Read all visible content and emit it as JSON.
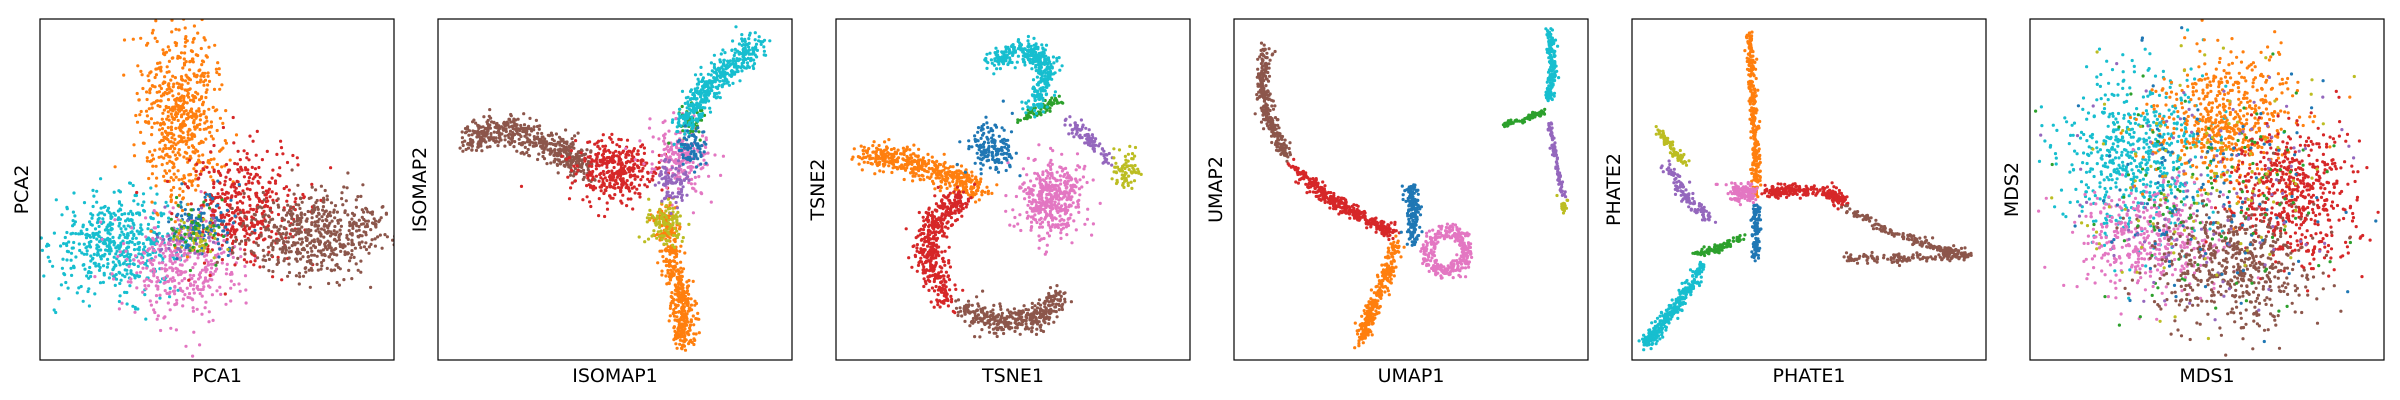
{
  "chart_data": [
    {
      "type": "scatter",
      "xlabel": "PCA1",
      "ylabel": "PCA2",
      "xlim": [
        0,
        1
      ],
      "ylim": [
        0,
        1
      ],
      "ticks": false,
      "grid": false,
      "clusters": [
        {
          "color": "#17becf",
          "n": 520,
          "shape": "blob",
          "cx": 0.22,
          "cy": 0.34,
          "sx": 0.09,
          "sy": 0.07
        },
        {
          "color": "#e377c2",
          "n": 380,
          "shape": "blob",
          "cx": 0.41,
          "cy": 0.28,
          "sx": 0.08,
          "sy": 0.08
        },
        {
          "color": "#ff7f0e",
          "n": 600,
          "shape": "blob",
          "cx": 0.4,
          "cy": 0.72,
          "sx": 0.06,
          "sy": 0.13
        },
        {
          "color": "#d62728",
          "n": 420,
          "shape": "blob",
          "cx": 0.57,
          "cy": 0.45,
          "sx": 0.08,
          "sy": 0.08
        },
        {
          "color": "#8c564b",
          "n": 560,
          "shape": "blob",
          "cx": 0.78,
          "cy": 0.37,
          "sx": 0.1,
          "sy": 0.06
        },
        {
          "color": "#1f77b4",
          "n": 120,
          "shape": "blob",
          "cx": 0.46,
          "cy": 0.4,
          "sx": 0.05,
          "sy": 0.05
        },
        {
          "color": "#bcbd22",
          "n": 60,
          "shape": "blob",
          "cx": 0.45,
          "cy": 0.36,
          "sx": 0.03,
          "sy": 0.03
        },
        {
          "color": "#9467bd",
          "n": 40,
          "shape": "blob",
          "cx": 0.42,
          "cy": 0.35,
          "sx": 0.04,
          "sy": 0.04
        },
        {
          "color": "#2ca02c",
          "n": 40,
          "shape": "blob",
          "cx": 0.44,
          "cy": 0.38,
          "sx": 0.04,
          "sy": 0.04
        }
      ]
    },
    {
      "type": "scatter",
      "xlabel": "ISOMAP1",
      "ylabel": "ISOMAP2",
      "xlim": [
        0,
        1
      ],
      "ylim": [
        0,
        1
      ],
      "ticks": false,
      "grid": false,
      "clusters": [
        {
          "color": "#8c564b",
          "n": 520,
          "shape": "path",
          "pts": [
            [
              0.08,
              0.64
            ],
            [
              0.2,
              0.68
            ],
            [
              0.33,
              0.62
            ],
            [
              0.42,
              0.57
            ]
          ],
          "w": 0.045
        },
        {
          "color": "#d62728",
          "n": 360,
          "shape": "blob",
          "cx": 0.5,
          "cy": 0.55,
          "sx": 0.06,
          "sy": 0.045
        },
        {
          "color": "#e377c2",
          "n": 220,
          "shape": "blob",
          "cx": 0.69,
          "cy": 0.6,
          "sx": 0.04,
          "sy": 0.05
        },
        {
          "color": "#ff7f0e",
          "n": 480,
          "shape": "path",
          "pts": [
            [
              0.63,
              0.45
            ],
            [
              0.66,
              0.3
            ],
            [
              0.69,
              0.16
            ],
            [
              0.7,
              0.05
            ]
          ],
          "w": 0.035
        },
        {
          "color": "#bcbd22",
          "n": 100,
          "shape": "blob",
          "cx": 0.64,
          "cy": 0.4,
          "sx": 0.025,
          "sy": 0.035
        },
        {
          "color": "#9467bd",
          "n": 90,
          "shape": "blob",
          "cx": 0.66,
          "cy": 0.52,
          "sx": 0.025,
          "sy": 0.035
        },
        {
          "color": "#2ca02c",
          "n": 50,
          "shape": "blob",
          "cx": 0.71,
          "cy": 0.7,
          "sx": 0.02,
          "sy": 0.03
        },
        {
          "color": "#17becf",
          "n": 420,
          "shape": "path",
          "pts": [
            [
              0.69,
              0.68
            ],
            [
              0.75,
              0.78
            ],
            [
              0.82,
              0.86
            ],
            [
              0.9,
              0.93
            ]
          ],
          "w": 0.04
        },
        {
          "color": "#1f77b4",
          "n": 70,
          "shape": "blob",
          "cx": 0.72,
          "cy": 0.62,
          "sx": 0.02,
          "sy": 0.03
        }
      ]
    },
    {
      "type": "scatter",
      "xlabel": "TSNE1",
      "ylabel": "TSNE2",
      "xlim": [
        0,
        1
      ],
      "ylim": [
        0,
        1
      ],
      "ticks": false,
      "grid": false,
      "clusters": [
        {
          "color": "#ff7f0e",
          "n": 460,
          "shape": "path",
          "pts": [
            [
              0.08,
              0.6
            ],
            [
              0.18,
              0.59
            ],
            [
              0.3,
              0.55
            ],
            [
              0.4,
              0.5
            ]
          ],
          "w": 0.04
        },
        {
          "color": "#e377c2",
          "n": 420,
          "shape": "blob",
          "cx": 0.61,
          "cy": 0.47,
          "sx": 0.05,
          "sy": 0.055
        },
        {
          "color": "#d62728",
          "n": 460,
          "shape": "path",
          "pts": [
            [
              0.35,
              0.48
            ],
            [
              0.28,
              0.4
            ],
            [
              0.26,
              0.28
            ],
            [
              0.32,
              0.18
            ]
          ],
          "w": 0.045
        },
        {
          "color": "#8c564b",
          "n": 380,
          "shape": "path",
          "pts": [
            [
              0.36,
              0.15
            ],
            [
              0.45,
              0.11
            ],
            [
              0.56,
              0.12
            ],
            [
              0.63,
              0.18
            ]
          ],
          "w": 0.04
        },
        {
          "color": "#1f77b4",
          "n": 160,
          "shape": "blob",
          "cx": 0.44,
          "cy": 0.62,
          "sx": 0.03,
          "sy": 0.04
        },
        {
          "color": "#2ca02c",
          "n": 70,
          "shape": "path",
          "pts": [
            [
              0.52,
              0.7
            ],
            [
              0.58,
              0.74
            ],
            [
              0.63,
              0.76
            ]
          ],
          "w": 0.015
        },
        {
          "color": "#17becf",
          "n": 380,
          "shape": "path",
          "pts": [
            [
              0.44,
              0.88
            ],
            [
              0.54,
              0.91
            ],
            [
              0.6,
              0.86
            ],
            [
              0.56,
              0.74
            ]
          ],
          "w": 0.035
        },
        {
          "color": "#9467bd",
          "n": 90,
          "shape": "path",
          "pts": [
            [
              0.66,
              0.7
            ],
            [
              0.72,
              0.64
            ],
            [
              0.78,
              0.58
            ]
          ],
          "w": 0.018
        },
        {
          "color": "#bcbd22",
          "n": 70,
          "shape": "blob",
          "cx": 0.82,
          "cy": 0.56,
          "sx": 0.02,
          "sy": 0.03
        }
      ]
    },
    {
      "type": "scatter",
      "xlabel": "UMAP1",
      "ylabel": "UMAP2",
      "xlim": [
        0,
        1
      ],
      "ylim": [
        0,
        1
      ],
      "ticks": false,
      "grid": false,
      "clusters": [
        {
          "color": "#8c564b",
          "n": 300,
          "shape": "path",
          "pts": [
            [
              0.09,
              0.92
            ],
            [
              0.08,
              0.8
            ],
            [
              0.1,
              0.7
            ],
            [
              0.15,
              0.6
            ]
          ],
          "w": 0.02
        },
        {
          "color": "#d62728",
          "n": 380,
          "shape": "path",
          "pts": [
            [
              0.16,
              0.57
            ],
            [
              0.26,
              0.48
            ],
            [
              0.36,
              0.42
            ],
            [
              0.45,
              0.37
            ]
          ],
          "w": 0.02
        },
        {
          "color": "#ff7f0e",
          "n": 300,
          "shape": "path",
          "pts": [
            [
              0.46,
              0.34
            ],
            [
              0.42,
              0.22
            ],
            [
              0.38,
              0.12
            ],
            [
              0.36,
              0.05
            ]
          ],
          "w": 0.02
        },
        {
          "color": "#e377c2",
          "n": 300,
          "shape": "ring",
          "cx": 0.6,
          "cy": 0.32,
          "r": 0.055,
          "w": 0.022
        },
        {
          "color": "#1f77b4",
          "n": 160,
          "shape": "path",
          "pts": [
            [
              0.5,
              0.34
            ],
            [
              0.51,
              0.44
            ],
            [
              0.5,
              0.51
            ]
          ],
          "w": 0.02
        },
        {
          "color": "#2ca02c",
          "n": 80,
          "shape": "path",
          "pts": [
            [
              0.76,
              0.69
            ],
            [
              0.83,
              0.71
            ],
            [
              0.88,
              0.73
            ]
          ],
          "w": 0.008
        },
        {
          "color": "#17becf",
          "n": 200,
          "shape": "path",
          "pts": [
            [
              0.89,
              0.97
            ],
            [
              0.9,
              0.86
            ],
            [
              0.89,
              0.76
            ]
          ],
          "w": 0.012
        },
        {
          "color": "#9467bd",
          "n": 90,
          "shape": "path",
          "pts": [
            [
              0.89,
              0.7
            ],
            [
              0.91,
              0.58
            ],
            [
              0.93,
              0.48
            ]
          ],
          "w": 0.007
        },
        {
          "color": "#bcbd22",
          "n": 20,
          "shape": "blob",
          "cx": 0.93,
          "cy": 0.45,
          "sx": 0.006,
          "sy": 0.012
        }
      ]
    },
    {
      "type": "scatter",
      "xlabel": "PHATE1",
      "ylabel": "PHATE2",
      "xlim": [
        0,
        1
      ],
      "ylim": [
        0,
        1
      ],
      "ticks": false,
      "grid": false,
      "clusters": [
        {
          "color": "#ff7f0e",
          "n": 300,
          "shape": "path",
          "pts": [
            [
              0.33,
              0.96
            ],
            [
              0.34,
              0.8
            ],
            [
              0.35,
              0.62
            ],
            [
              0.35,
              0.48
            ]
          ],
          "w": 0.012
        },
        {
          "color": "#d62728",
          "n": 240,
          "shape": "path",
          "pts": [
            [
              0.37,
              0.49
            ],
            [
              0.46,
              0.5
            ],
            [
              0.56,
              0.49
            ],
            [
              0.6,
              0.46
            ]
          ],
          "w": 0.018
        },
        {
          "color": "#8c564b",
          "n": 320,
          "shape": "path",
          "pts": [
            [
              0.6,
              0.45
            ],
            [
              0.72,
              0.38
            ],
            [
              0.86,
              0.33
            ],
            [
              0.95,
              0.31
            ],
            [
              0.85,
              0.3
            ],
            [
              0.7,
              0.3
            ],
            [
              0.6,
              0.3
            ]
          ],
          "w": 0.014
        },
        {
          "color": "#17becf",
          "n": 320,
          "shape": "path",
          "pts": [
            [
              0.2,
              0.28
            ],
            [
              0.14,
              0.18
            ],
            [
              0.08,
              0.1
            ],
            [
              0.04,
              0.05
            ]
          ],
          "w": 0.018
        },
        {
          "color": "#2ca02c",
          "n": 100,
          "shape": "path",
          "pts": [
            [
              0.18,
              0.31
            ],
            [
              0.25,
              0.33
            ],
            [
              0.31,
              0.36
            ]
          ],
          "w": 0.012
        },
        {
          "color": "#9467bd",
          "n": 120,
          "shape": "path",
          "pts": [
            [
              0.1,
              0.57
            ],
            [
              0.16,
              0.47
            ],
            [
              0.22,
              0.42
            ]
          ],
          "w": 0.02
        },
        {
          "color": "#bcbd22",
          "n": 80,
          "shape": "path",
          "pts": [
            [
              0.07,
              0.68
            ],
            [
              0.11,
              0.62
            ],
            [
              0.15,
              0.58
            ]
          ],
          "w": 0.012
        },
        {
          "color": "#e377c2",
          "n": 120,
          "shape": "blob",
          "cx": 0.31,
          "cy": 0.49,
          "sx": 0.02,
          "sy": 0.015
        },
        {
          "color": "#1f77b4",
          "n": 110,
          "shape": "path",
          "pts": [
            [
              0.35,
              0.46
            ],
            [
              0.35,
              0.38
            ],
            [
              0.35,
              0.3
            ]
          ],
          "w": 0.012
        }
      ]
    },
    {
      "type": "scatter",
      "xlabel": "MDS1",
      "ylabel": "MDS2",
      "xlim": [
        0,
        1
      ],
      "ylim": [
        0,
        1
      ],
      "ticks": false,
      "grid": false,
      "clusters": [
        {
          "color": "#17becf",
          "n": 600,
          "shape": "blob",
          "cx": 0.3,
          "cy": 0.6,
          "sx": 0.11,
          "sy": 0.12
        },
        {
          "color": "#e377c2",
          "n": 420,
          "shape": "blob",
          "cx": 0.34,
          "cy": 0.36,
          "sx": 0.1,
          "sy": 0.08
        },
        {
          "color": "#ff7f0e",
          "n": 560,
          "shape": "blob",
          "cx": 0.56,
          "cy": 0.7,
          "sx": 0.1,
          "sy": 0.1
        },
        {
          "color": "#d62728",
          "n": 560,
          "shape": "blob",
          "cx": 0.74,
          "cy": 0.48,
          "sx": 0.09,
          "sy": 0.1
        },
        {
          "color": "#8c564b",
          "n": 560,
          "shape": "blob",
          "cx": 0.57,
          "cy": 0.28,
          "sx": 0.11,
          "sy": 0.09
        },
        {
          "color": "#1f77b4",
          "n": 120,
          "shape": "blob",
          "cx": 0.5,
          "cy": 0.5,
          "sx": 0.18,
          "sy": 0.18
        },
        {
          "color": "#2ca02c",
          "n": 120,
          "shape": "blob",
          "cx": 0.5,
          "cy": 0.5,
          "sx": 0.18,
          "sy": 0.18
        },
        {
          "color": "#9467bd",
          "n": 110,
          "shape": "blob",
          "cx": 0.5,
          "cy": 0.5,
          "sx": 0.18,
          "sy": 0.18
        },
        {
          "color": "#bcbd22",
          "n": 100,
          "shape": "blob",
          "cx": 0.5,
          "cy": 0.5,
          "sx": 0.18,
          "sy": 0.18
        }
      ]
    }
  ]
}
